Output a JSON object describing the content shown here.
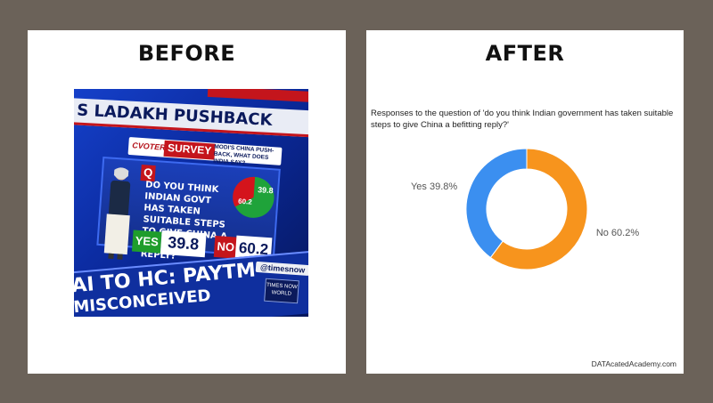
{
  "left": {
    "heading": "BEFORE",
    "tv": {
      "banner_top": "S LADAKH PUSHBACK",
      "cvoter": "CVOTER",
      "survey": "SURVEY",
      "survey_subtitle": "MODI'S CHINA PUSH-BACK, WHAT DOES INDIA SAY?",
      "q_marker": "Q",
      "question": "DO YOU THINK INDIAN GOVT HAS TAKEN SUITABLE STEPS TO GIVE CHINA A BEFITTING REPLY?",
      "mini_pie_yes": "39.8",
      "mini_pie_no": "60.2",
      "yes_label": "YES",
      "yes_value": "39.8",
      "no_label": "NO",
      "no_value": "60.2",
      "handle": "@timesnow",
      "channel": "TIMES NOW WORLD",
      "ticker_line1": "AI TO HC: PAYTM",
      "ticker_line2": "MISCONCEIVED"
    }
  },
  "right": {
    "heading": "AFTER",
    "watermark": "DATAcatedAcademy.com"
  },
  "colors": {
    "yes": "#3b8ff0",
    "no": "#f7941d",
    "frame": "#6b6259"
  },
  "chart_data": {
    "type": "pie",
    "title": "Responses to the question of 'do you think Indian government has taken suitable steps to give China a befitting reply?'",
    "donut": true,
    "slices": [
      {
        "label": "Yes",
        "value": 39.8,
        "display": "Yes 39.8%"
      },
      {
        "label": "No",
        "value": 60.2,
        "display": "No 60.2%"
      }
    ]
  }
}
